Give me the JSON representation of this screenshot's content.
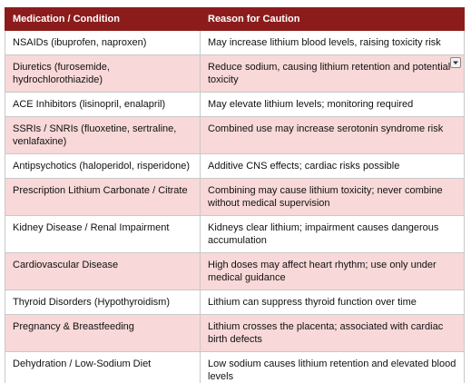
{
  "table": {
    "columns": [
      "Medication / Condition",
      "Reason for Caution"
    ],
    "rows": [
      [
        "NSAIDs (ibuprofen, naproxen)",
        "May increase lithium blood levels, raising toxicity risk"
      ],
      [
        "Diuretics (furosemide, hydrochlorothiazide)",
        "Reduce sodium, causing lithium retention and potential toxicity"
      ],
      [
        "ACE Inhibitors (lisinopril, enalapril)",
        "May elevate lithium levels; monitoring required"
      ],
      [
        "SSRIs / SNRIs (fluoxetine, sertraline, venlafaxine)",
        "Combined use may increase serotonin syndrome risk"
      ],
      [
        "Antipsychotics (haloperidol, risperidone)",
        "Additive CNS effects; cardiac risks possible"
      ],
      [
        "Prescription Lithium Carbonate / Citrate",
        "Combining may cause lithium toxicity; never combine without medical supervision"
      ],
      [
        "Kidney Disease / Renal Impairment",
        "Kidneys clear lithium; impairment causes dangerous accumulation"
      ],
      [
        "Cardiovascular Disease",
        "High doses may affect heart rhythm; use only under medical guidance"
      ],
      [
        "Thyroid Disorders (Hypothyroidism)",
        "Lithium can suppress thyroid function over time"
      ],
      [
        "Pregnancy & Breastfeeding",
        "Lithium crosses the placenta; associated with cardiac birth defects"
      ],
      [
        "Dehydration / Low-Sodium Diet",
        "Low sodium causes lithium retention and elevated blood levels"
      ]
    ]
  }
}
